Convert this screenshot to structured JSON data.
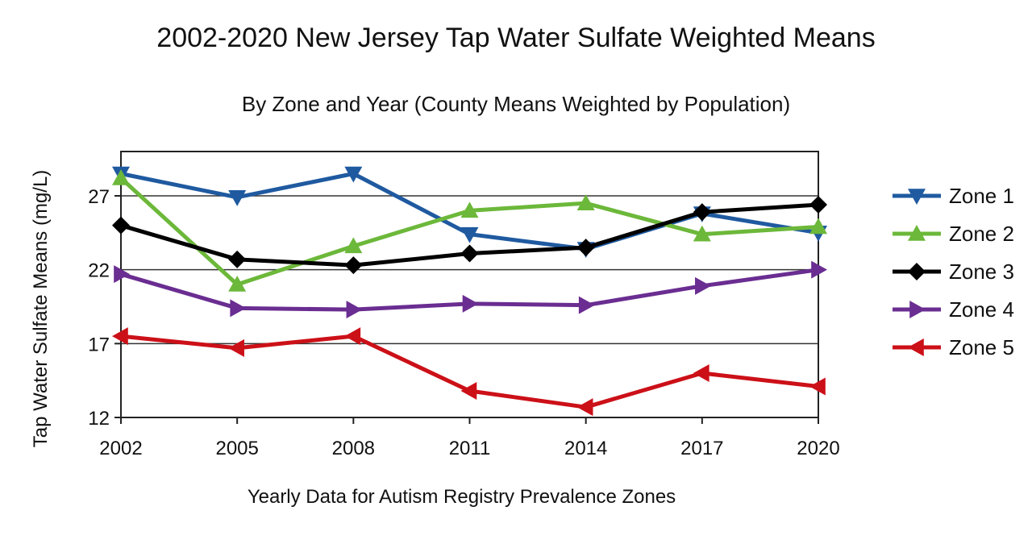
{
  "chart_data": {
    "type": "line",
    "title": "2002-2020 New Jersey Tap Water Sulfate Weighted Means",
    "subtitle": "By Zone and Year (County Means Weighted by Population)",
    "xlabel": "Yearly Data for Autism Registry Prevalence Zones",
    "ylabel": "Tap Water Sulfate Means (mg/L)",
    "x": [
      2002,
      2005,
      2008,
      2011,
      2014,
      2017,
      2020
    ],
    "ylim": [
      12,
      30
    ],
    "yticks": [
      12,
      17,
      22,
      27
    ],
    "grid": "horizontal",
    "legend_position": "right",
    "series": [
      {
        "name": "Zone 1",
        "color": "#1f5aa0",
        "marker": "triangle-down",
        "values": [
          28.5,
          26.9,
          28.5,
          24.4,
          23.4,
          25.8,
          24.5
        ]
      },
      {
        "name": "Zone 2",
        "color": "#6cb83a",
        "marker": "triangle-up",
        "values": [
          28.2,
          21.0,
          23.6,
          26.0,
          26.5,
          24.4,
          24.9
        ]
      },
      {
        "name": "Zone 3",
        "color": "#000000",
        "marker": "diamond",
        "values": [
          25.0,
          22.7,
          22.3,
          23.1,
          23.5,
          25.9,
          26.4
        ]
      },
      {
        "name": "Zone 4",
        "color": "#6a2d91",
        "marker": "triangle-right",
        "values": [
          21.7,
          19.4,
          19.3,
          19.7,
          19.6,
          20.9,
          22.0
        ]
      },
      {
        "name": "Zone 5",
        "color": "#cc1018",
        "marker": "triangle-left",
        "values": [
          17.5,
          16.7,
          17.5,
          13.8,
          12.7,
          15.0,
          14.1
        ]
      }
    ]
  }
}
